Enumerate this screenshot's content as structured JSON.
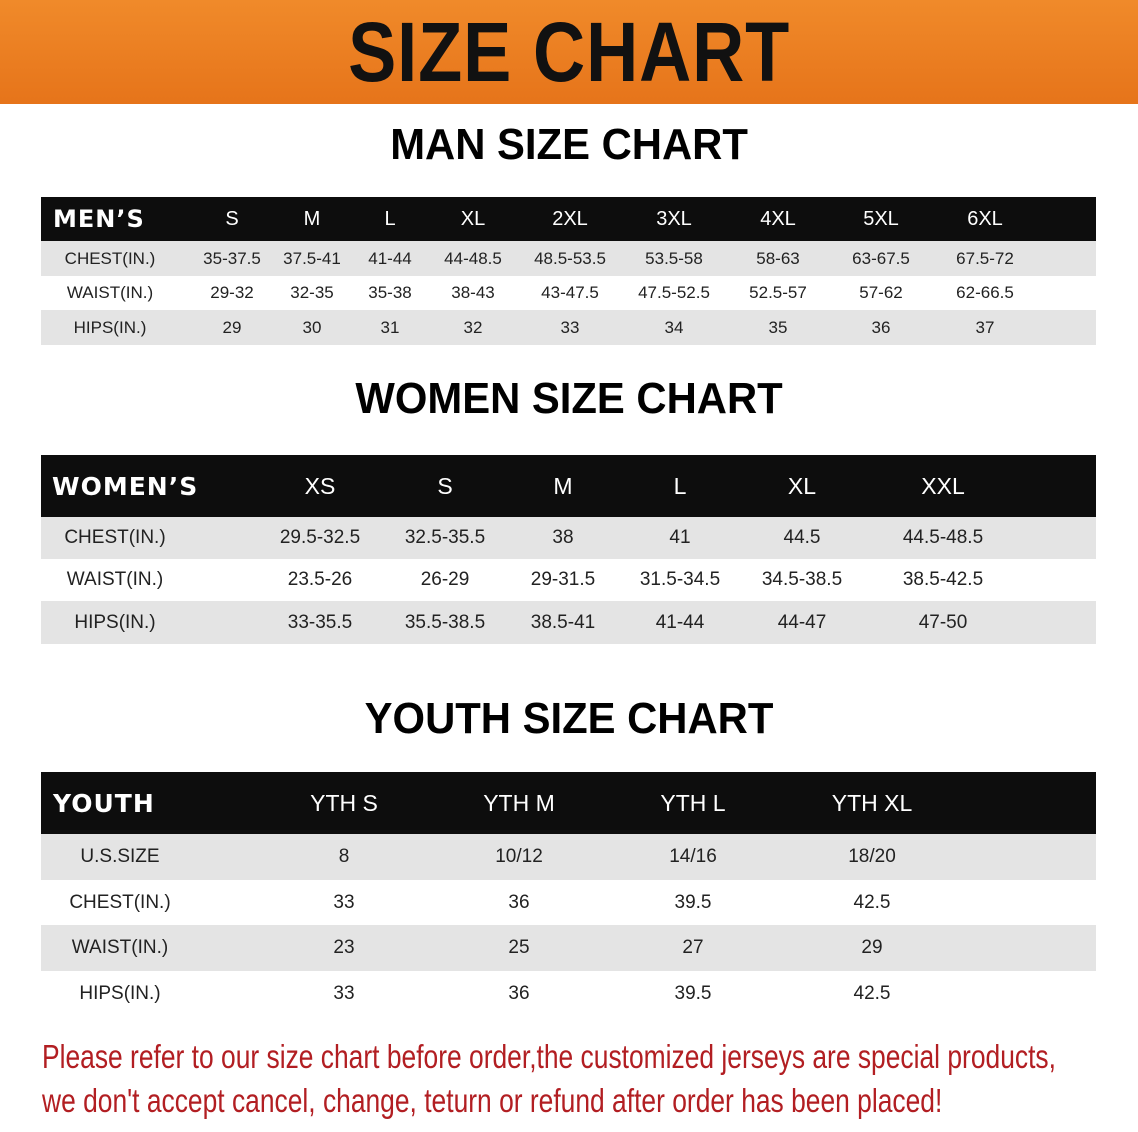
{
  "banner": {
    "title": "SIZE CHART",
    "color": "#e97d20"
  },
  "men": {
    "title": "MAN SIZE CHART",
    "header": [
      "MEN’S",
      "S",
      "M",
      "L",
      "XL",
      "2XL",
      "3XL",
      "4XL",
      "5XL",
      "6XL"
    ],
    "rows": [
      [
        "CHEST(IN.)",
        "35-37.5",
        "37.5-41",
        "41-44",
        "44-48.5",
        "48.5-53.5",
        "53.5-58",
        "58-63",
        "63-67.5",
        "67.5-72"
      ],
      [
        "WAIST(IN.)",
        "29-32",
        "32-35",
        "35-38",
        "38-43",
        "43-47.5",
        "47.5-52.5",
        "52.5-57",
        "57-62",
        "62-66.5"
      ],
      [
        "HIPS(IN.)",
        "29",
        "30",
        "31",
        "32",
        "33",
        "34",
        "35",
        "36",
        "37"
      ]
    ]
  },
  "women": {
    "title": "WOMEN SIZE CHART",
    "header": [
      "WOMEN’S",
      "XS",
      "S",
      "M",
      "L",
      "XL",
      "XXL"
    ],
    "rows": [
      [
        "CHEST(IN.)",
        "29.5-32.5",
        "32.5-35.5",
        "38",
        "41",
        "44.5",
        "44.5-48.5"
      ],
      [
        "WAIST(IN.)",
        "23.5-26",
        "26-29",
        "29-31.5",
        "31.5-34.5",
        "34.5-38.5",
        "38.5-42.5"
      ],
      [
        "HIPS(IN.)",
        "33-35.5",
        "35.5-38.5",
        "38.5-41",
        "41-44",
        "44-47",
        "47-50"
      ]
    ]
  },
  "youth": {
    "title": "YOUTH SIZE CHART",
    "header": [
      "YOUTH",
      "YTH S",
      "YTH M",
      "YTH L",
      "YTH XL"
    ],
    "rows": [
      [
        "U.S.SIZE",
        "8",
        "10/12",
        "14/16",
        "18/20"
      ],
      [
        "CHEST(IN.)",
        "33",
        "36",
        "39.5",
        "42.5"
      ],
      [
        "WAIST(IN.)",
        "23",
        "25",
        "27",
        "29"
      ],
      [
        "HIPS(IN.)",
        "33",
        "36",
        "39.5",
        "42.5"
      ]
    ]
  },
  "footer": {
    "line1": "Please refer to our size chart before order,the customized jerseys are special products,",
    "line2": "we don't accept cancel, change, teturn or refund after order has been placed!",
    "color": "#b21e22"
  }
}
